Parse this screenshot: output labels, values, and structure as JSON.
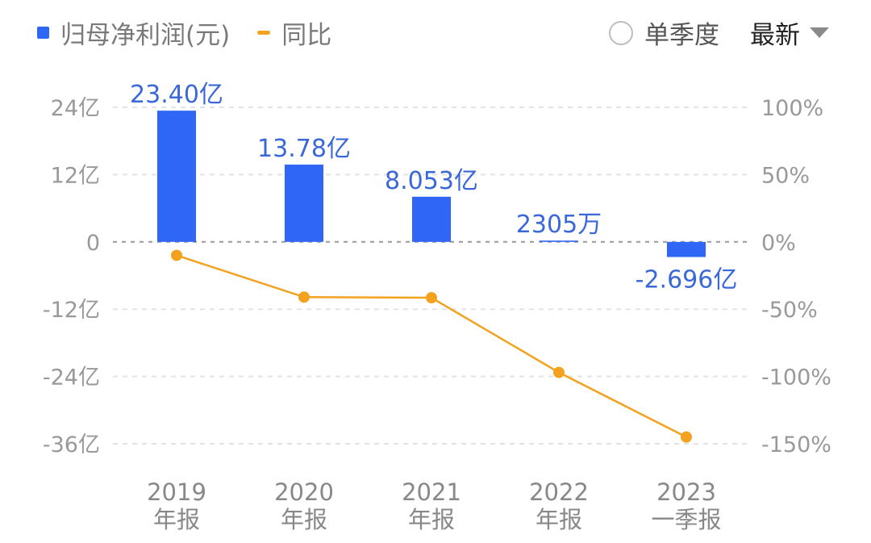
{
  "legend": {
    "bar_label": "归母净利润(元)",
    "line_label": "同比"
  },
  "controls": {
    "single_quarter_label": "单季度",
    "period_label": "最新"
  },
  "colors": {
    "bar": "#2f66f6",
    "line": "#f3a21f",
    "data_label": "#3a68d8",
    "grid": "#e3e3e3",
    "zero_line": "#999999"
  },
  "chart_data": {
    "type": "bar",
    "combo": "bar+line",
    "categories": [
      "2019\n年报",
      "2020\n年报",
      "2021\n年报",
      "2022\n年报",
      "2023\n一季报"
    ],
    "series": [
      {
        "name": "归母净利润(元)",
        "type": "bar",
        "axis": "left",
        "unit": "亿",
        "values": [
          23.4,
          13.78,
          8.053,
          0.2305,
          -2.696
        ],
        "labels": [
          "23.40亿",
          "13.78亿",
          "8.053亿",
          "2305万",
          "-2.696亿"
        ]
      },
      {
        "name": "同比",
        "type": "line",
        "axis": "right",
        "unit": "%",
        "values": [
          -10,
          -41,
          -41.5,
          -97,
          -145
        ]
      }
    ],
    "y_left": {
      "ticks": [
        24,
        12,
        0,
        -12,
        -24,
        -36
      ],
      "tick_labels": [
        "24亿",
        "12亿",
        "0",
        "-12亿",
        "-24亿",
        "-36亿"
      ],
      "ylim": [
        -36,
        24
      ]
    },
    "y_right": {
      "ticks": [
        100,
        50,
        0,
        -50,
        -100,
        -150
      ],
      "tick_labels": [
        "100%",
        "50%",
        "0%",
        "-50%",
        "-100%",
        "-150%"
      ],
      "ylim": [
        -150,
        100
      ]
    },
    "grid": true,
    "legend_position": "top-left"
  }
}
